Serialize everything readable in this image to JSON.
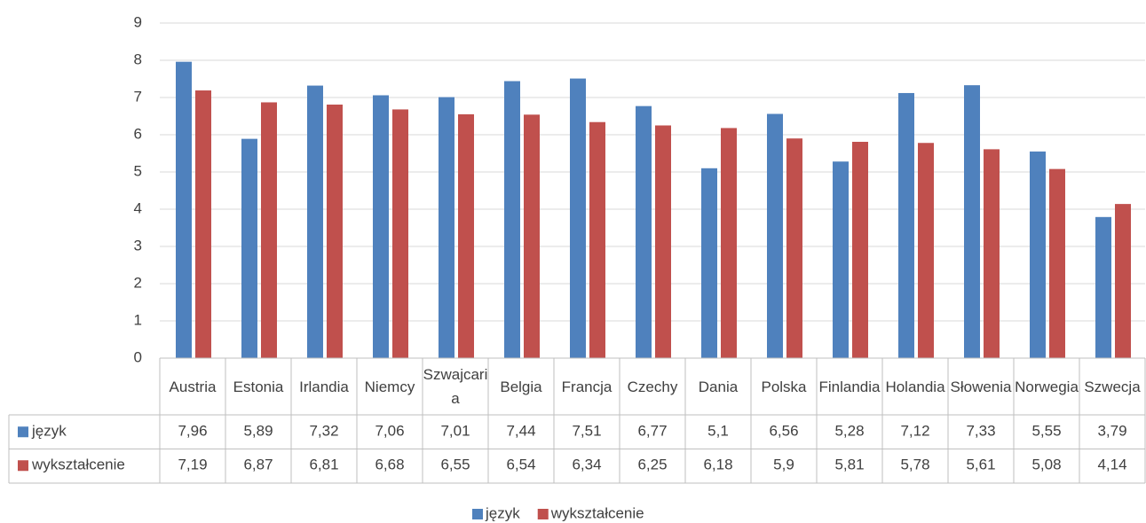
{
  "chart_data": {
    "type": "bar",
    "categories": [
      "Austria",
      "Estonia",
      "Irlandia",
      "Niemcy",
      "Szwajcaria",
      "Belgia",
      "Francja",
      "Czechy",
      "Dania",
      "Polska",
      "Finlandia",
      "Holandia",
      "Słowenia",
      "Norwegia",
      "Szwecja"
    ],
    "series": [
      {
        "name": "język",
        "color": "#4f81bd",
        "values": [
          7.96,
          5.89,
          7.32,
          7.06,
          7.01,
          7.44,
          7.51,
          6.77,
          5.1,
          6.56,
          5.28,
          7.12,
          7.33,
          5.55,
          3.79
        ],
        "value_labels": [
          "7,96",
          "5,89",
          "7,32",
          "7,06",
          "7,01",
          "7,44",
          "7,51",
          "6,77",
          "5,1",
          "6,56",
          "5,28",
          "7,12",
          "7,33",
          "5,55",
          "3,79"
        ]
      },
      {
        "name": "wykształcenie",
        "color": "#c0504d",
        "values": [
          7.19,
          6.87,
          6.81,
          6.68,
          6.55,
          6.54,
          6.34,
          6.25,
          6.18,
          5.9,
          5.81,
          5.78,
          5.61,
          5.08,
          4.14
        ],
        "value_labels": [
          "7,19",
          "6,87",
          "6,81",
          "6,68",
          "6,55",
          "6,54",
          "6,34",
          "6,25",
          "6,18",
          "5,9",
          "5,81",
          "5,78",
          "5,61",
          "5,08",
          "4,14"
        ]
      }
    ],
    "ylim": [
      0,
      9
    ],
    "yticks": [
      0,
      1,
      2,
      3,
      4,
      5,
      6,
      7,
      8,
      9
    ],
    "grid": true,
    "legend": "bottom",
    "data_table": true
  }
}
